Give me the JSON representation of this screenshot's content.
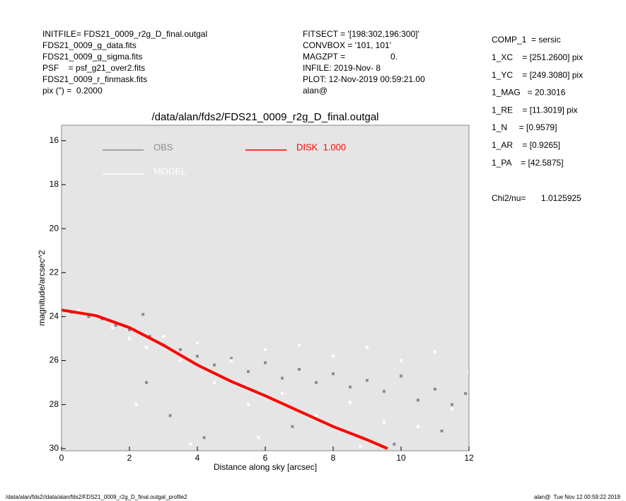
{
  "header": {
    "left": [
      "INITFILE= FDS21_0009_r2g_D_final.outgal",
      "FDS21_0009_g_data.fits",
      "FDS21_0009_g_sigma.fits",
      "PSF    = psf_g21_over2.fits",
      "FDS21_0009_r_finmask.fits",
      "pix (\") =  0.2000"
    ],
    "middle": [
      [
        "FITSECT = '[198:302,196:300]'"
      ],
      [
        "CONVBOX = '101, 101'"
      ],
      [
        "MAGZPT =",
        "0."
      ],
      [
        "INFILE: 2019-Nov- 8"
      ],
      [
        "PLOT: 12-Nov-2019 00:59:21.00"
      ],
      [
        "alan@"
      ]
    ],
    "right": [
      "COMP_1  = sersic",
      "1_XC    = [251.2600] pix",
      "1_YC    = [249.3080] pix",
      "1_MAG   = 20.3016",
      "1_RE    = [11.3019] pix",
      "1_N     = [0.9579]",
      "1_AR    = [0.9265]",
      "1_PA    = [42.5875]"
    ],
    "fit": [
      "Chi2/nu=",
      "1.0125925"
    ]
  },
  "chart_data": {
    "type": "scatter",
    "title": "/data/alan/fds2/FDS21_0009_r2g_D_final.outgal",
    "x_label": "Distance along sky [arcsec]",
    "y_label": "magnitude/arcsec^2",
    "xlim": [
      0,
      12
    ],
    "ylim": [
      30.1,
      15.3
    ],
    "xticks": [
      0,
      2,
      4,
      6,
      8,
      10,
      12
    ],
    "yticks": [
      16,
      18,
      20,
      22,
      24,
      26,
      28,
      30
    ],
    "background": "#e5e5e5",
    "series": [
      {
        "name": "OBS",
        "color": "#8c8c8c",
        "mode": "markers",
        "x": [
          0.3,
          0.8,
          1.2,
          1.6,
          2.0,
          2.4,
          2.6,
          3.0,
          3.5,
          4.0,
          4.5,
          5.0,
          5.5,
          6.0,
          6.5,
          7.0,
          7.5,
          8.0,
          8.5,
          9.0,
          9.5,
          10.0,
          10.5,
          11.0,
          11.5,
          11.9,
          2.5,
          3.2,
          4.2,
          6.8,
          9.8,
          11.2
        ],
        "values": [
          23.8,
          24.0,
          24.1,
          24.4,
          24.6,
          23.9,
          24.9,
          25.3,
          25.5,
          25.8,
          26.2,
          25.9,
          26.5,
          26.1,
          26.8,
          26.4,
          27.0,
          26.6,
          27.2,
          26.9,
          27.4,
          26.7,
          27.8,
          27.3,
          28.0,
          27.5,
          27.0,
          28.5,
          29.5,
          29.0,
          29.8,
          29.2
        ]
      },
      {
        "name": "MODEL",
        "color": "#ffffff",
        "mode": "markers",
        "x": [
          0.5,
          1.0,
          1.5,
          2.0,
          2.5,
          3.0,
          3.5,
          4.0,
          4.5,
          5.0,
          5.5,
          6.0,
          6.5,
          7.0,
          7.5,
          8.0,
          8.5,
          9.0,
          9.5,
          10.0,
          10.5,
          11.0,
          11.5,
          12.0,
          2.2,
          3.8,
          5.8,
          8.8
        ],
        "values": [
          23.7,
          23.9,
          24.5,
          25.0,
          25.4,
          24.9,
          26.0,
          25.2,
          27.0,
          26.0,
          28.0,
          25.5,
          27.5,
          25.3,
          28.5,
          25.8,
          27.9,
          25.4,
          28.8,
          26.0,
          29.0,
          25.6,
          28.2,
          26.5,
          28.0,
          29.8,
          29.5,
          29.9
        ]
      },
      {
        "name": "DISK  1.000",
        "color": "#ff0000",
        "mode": "line",
        "x": [
          0,
          1,
          2,
          3,
          4,
          5,
          6,
          7,
          8,
          9,
          9.6
        ],
        "values": [
          23.7,
          23.95,
          24.5,
          25.3,
          26.2,
          26.95,
          27.6,
          28.3,
          29.0,
          29.6,
          30.0
        ]
      }
    ]
  },
  "footer": {
    "left": "/data/alan/fds2//data/alan/fds2/FDS21_0009_r2g_D_final.outgal_profile2",
    "right": "alan@  Tue Nov 12 00:59:22 2019"
  }
}
